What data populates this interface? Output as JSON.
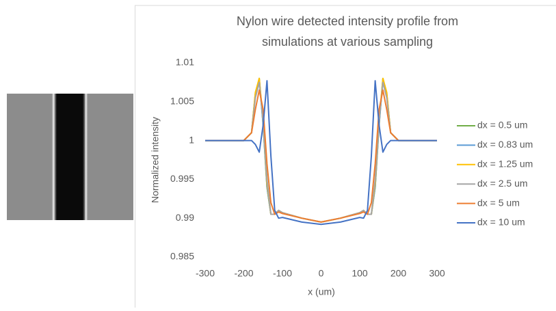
{
  "chart_data": {
    "type": "line",
    "title": [
      "Nylon wire detected intensity profile from",
      "simulations at various sampling"
    ],
    "x_label": "x (um)",
    "y_label": "Normalized intensity",
    "x": [
      -300,
      -200,
      -180,
      -170,
      -160,
      -150,
      -140,
      -130,
      -120,
      -110,
      -100,
      -50,
      0,
      50,
      100,
      110,
      120,
      130,
      140,
      150,
      160,
      170,
      180,
      200,
      300
    ],
    "series": [
      {
        "name": "dx = 0.5 um",
        "color": "#70ad47",
        "values": [
          1,
          1,
          1.001,
          1.006,
          1.008,
          1.002,
          0.994,
          0.9905,
          0.9905,
          0.991,
          0.9907,
          0.99,
          0.9895,
          0.99,
          0.9907,
          0.991,
          0.9905,
          0.9905,
          0.994,
          1.002,
          1.008,
          1.006,
          1.001,
          1,
          1
        ]
      },
      {
        "name": "dx = 0.83 um",
        "color": "#5b9bd5",
        "values": [
          1,
          1,
          1.001,
          1.006,
          1.0078,
          1.002,
          0.994,
          0.9905,
          0.9905,
          0.991,
          0.9907,
          0.99,
          0.9895,
          0.99,
          0.9907,
          0.991,
          0.9905,
          0.9905,
          0.994,
          1.002,
          1.0078,
          1.006,
          1.001,
          1,
          1
        ]
      },
      {
        "name": "dx = 1.25 um",
        "color": "#ffc000",
        "values": [
          1,
          1,
          1.001,
          1.0062,
          1.008,
          1.0025,
          0.9945,
          0.9905,
          0.9905,
          0.991,
          0.9907,
          0.99,
          0.9895,
          0.99,
          0.9907,
          0.991,
          0.9905,
          0.9905,
          0.9945,
          1.0025,
          1.008,
          1.0062,
          1.001,
          1,
          1
        ]
      },
      {
        "name": "dx = 2.5 um",
        "color": "#a5a5a5",
        "values": [
          1,
          1,
          1.001,
          1.0055,
          1.0075,
          1.0025,
          0.995,
          0.9905,
          0.9905,
          0.991,
          0.9907,
          0.99,
          0.9895,
          0.99,
          0.9907,
          0.991,
          0.9905,
          0.9905,
          0.995,
          1.0025,
          1.0075,
          1.0055,
          1.001,
          1,
          1
        ]
      },
      {
        "name": "dx = 5 um",
        "color": "#ed7d31",
        "values": [
          1,
          1,
          1.001,
          1.004,
          1.0065,
          1.004,
          0.997,
          0.992,
          0.9905,
          0.9908,
          0.9906,
          0.99,
          0.9895,
          0.99,
          0.9906,
          0.9908,
          0.9905,
          0.992,
          0.997,
          1.004,
          1.0065,
          1.004,
          1.001,
          1,
          1
        ]
      },
      {
        "name": "dx = 10 um",
        "color": "#4472c4",
        "values": [
          1,
          1,
          1,
          0.9995,
          0.9985,
          1.002,
          1.0077,
          0.998,
          0.991,
          0.99,
          0.9901,
          0.9895,
          0.9892,
          0.9895,
          0.9901,
          0.99,
          0.991,
          0.998,
          1.0077,
          1.002,
          0.9985,
          0.9995,
          1,
          1,
          1
        ]
      }
    ],
    "xlim": [
      -300,
      300
    ],
    "xticks": [
      -300,
      -200,
      -100,
      0,
      100,
      200,
      300
    ],
    "ylim": [
      0.985,
      1.01
    ],
    "yticks": [
      0.985,
      0.99,
      0.995,
      1,
      1.005,
      1.01
    ],
    "grid": false,
    "legend": "right"
  }
}
